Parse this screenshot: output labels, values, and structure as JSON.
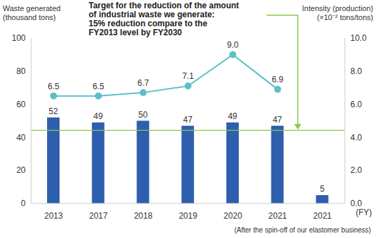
{
  "chart_data": {
    "type": "bar",
    "categories": [
      "2013",
      "2017",
      "2018",
      "2019",
      "2020",
      "2021",
      "2021"
    ],
    "category_notes": [
      null,
      null,
      null,
      null,
      null,
      null,
      "(After the spin-off of our elastomer business)"
    ],
    "xlabel": "(FY)",
    "ylabel": [
      "Waste generated",
      "(thousand tons)"
    ],
    "y2label": [
      "Intensity (production)",
      "(×10⁻² tons/tons)"
    ],
    "ylim": [
      0,
      100
    ],
    "yticks": [
      0,
      20,
      40,
      60,
      80,
      100
    ],
    "y2lim": [
      0,
      10
    ],
    "y2ticks": [
      {
        "value": 0,
        "label": "0.0"
      },
      {
        "value": 2,
        "label": "2.0"
      },
      {
        "value": 4,
        "label": "4.0"
      },
      {
        "value": 6,
        "label": "6.0"
      },
      {
        "value": 8,
        "label": "8.0"
      },
      {
        "value": 10,
        "label": "10.0"
      }
    ],
    "series": [
      {
        "name": "Waste generated",
        "type": "bar",
        "color": "#2e5fae",
        "values": [
          52,
          49,
          50,
          47,
          49,
          47,
          5
        ],
        "data_labels": true
      },
      {
        "name": "Intensity (production)",
        "type": "line",
        "axis": "y2",
        "color": "#5bbfca",
        "marker": "circle",
        "values": [
          6.5,
          6.5,
          6.7,
          7.1,
          9.0,
          6.9,
          null
        ],
        "value_labels": [
          "6.5",
          "6.5",
          "6.7",
          "7.1",
          "9.0",
          "6.9",
          null
        ],
        "data_labels": true
      }
    ],
    "target": {
      "value": 44.2,
      "color": "#8cc751",
      "label": [
        "Target for the reduction of the amount",
        "of industrial waste we generate:",
        "15% reduction compare to the",
        "FY2013 level by FY2030"
      ]
    }
  }
}
